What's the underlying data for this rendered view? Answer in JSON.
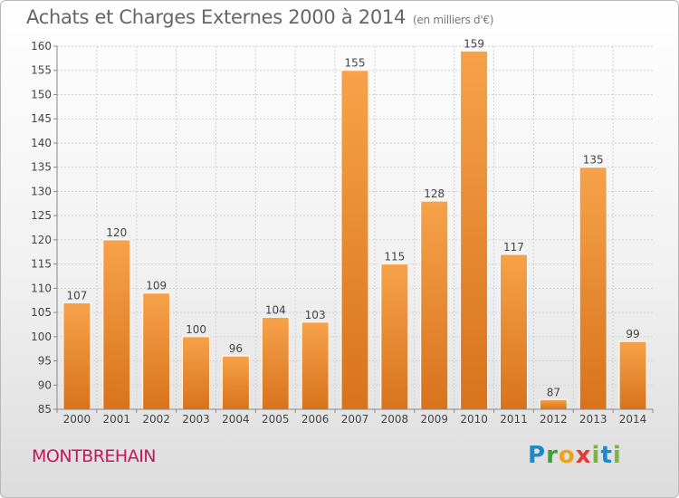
{
  "chart_data": {
    "type": "bar",
    "title": "Achats et Charges Externes 2000 à 2014",
    "subtitle": "(en milliers d'€)",
    "categories": [
      "2000",
      "2001",
      "2002",
      "2003",
      "2004",
      "2005",
      "2006",
      "2007",
      "2008",
      "2009",
      "2010",
      "2011",
      "2012",
      "2013",
      "2014"
    ],
    "values": [
      107,
      120,
      109,
      100,
      96,
      104,
      103,
      155,
      115,
      128,
      159,
      117,
      87,
      135,
      99
    ],
    "ylim": [
      85,
      160
    ],
    "yticks": [
      85,
      90,
      95,
      100,
      105,
      110,
      115,
      120,
      125,
      130,
      135,
      140,
      145,
      150,
      155,
      160
    ],
    "grid": true,
    "bar_color": "#f0952e"
  },
  "footer": {
    "commune": "MONTBREHAIN",
    "logo_letters": [
      "P",
      "r",
      "o",
      "x",
      "i",
      "t",
      "i"
    ]
  }
}
